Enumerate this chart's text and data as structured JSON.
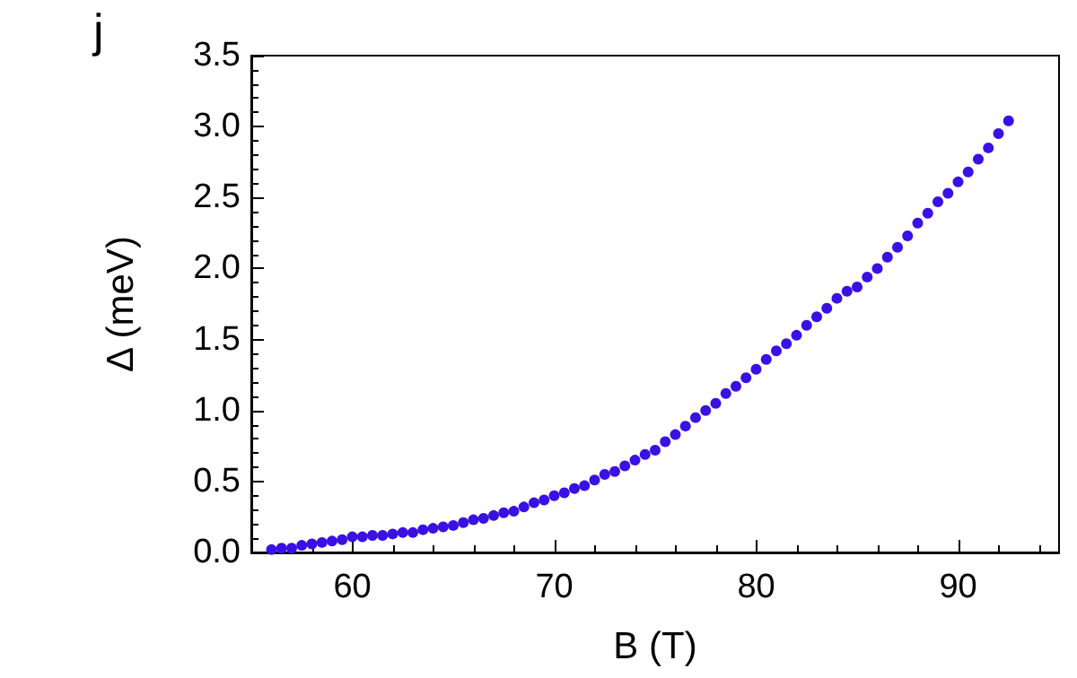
{
  "chart_data": {
    "type": "scatter",
    "xlabel": "B (T)",
    "ylabel": "Δ (meV)",
    "annotations": [
      "j"
    ],
    "xlim": [
      55,
      95
    ],
    "xticks": [
      60,
      70,
      80,
      90
    ],
    "ylim": [
      0,
      3.5
    ],
    "yticks": [
      {
        "value": 0,
        "label": "0.0"
      },
      0.5,
      {
        "value": 1,
        "label": "1.0"
      },
      1.5,
      {
        "value": 2,
        "label": "2.0"
      },
      2.5,
      {
        "value": 3,
        "label": "3.0"
      },
      3.5
    ],
    "grid": false,
    "marker": "circle",
    "x": [
      56,
      56.5,
      57,
      57.5,
      58,
      58.5,
      59,
      59.5,
      60,
      60.5,
      61,
      61.5,
      62,
      62.5,
      63,
      63.5,
      64,
      64.5,
      65,
      65.5,
      66,
      66.5,
      67,
      67.5,
      68,
      68.5,
      69,
      69.5,
      70,
      70.5,
      71,
      71.5,
      72,
      72.5,
      73,
      73.5,
      74,
      74.5,
      75,
      75.5,
      76,
      76.5,
      77,
      77.5,
      78,
      78.5,
      79,
      79.5,
      80,
      80.5,
      81,
      81.5,
      82,
      82.5,
      83,
      83.5,
      84,
      84.5,
      85,
      85.5,
      86,
      86.5,
      87,
      87.5,
      88,
      88.5,
      89,
      89.5,
      90,
      90.5,
      91,
      91.5,
      92,
      92.5
    ],
    "series": [
      {
        "color": "#3a10e5",
        "values": [
          0.02,
          0.03,
          0.03,
          0.05,
          0.06,
          0.07,
          0.08,
          0.09,
          0.11,
          0.11,
          0.12,
          0.12,
          0.13,
          0.14,
          0.14,
          0.16,
          0.17,
          0.18,
          0.19,
          0.21,
          0.23,
          0.24,
          0.26,
          0.28,
          0.29,
          0.32,
          0.35,
          0.37,
          0.4,
          0.42,
          0.45,
          0.47,
          0.51,
          0.55,
          0.57,
          0.61,
          0.65,
          0.69,
          0.72,
          0.78,
          0.83,
          0.89,
          0.95,
          1.0,
          1.05,
          1.12,
          1.17,
          1.23,
          1.29,
          1.36,
          1.42,
          1.47,
          1.53,
          1.6,
          1.66,
          1.72,
          1.79,
          1.84,
          1.87,
          1.94,
          2.0,
          2.08,
          2.15,
          2.23,
          2.32,
          2.39,
          2.47,
          2.53,
          2.61,
          2.68,
          2.77,
          2.85,
          2.95,
          3.04
        ]
      }
    ]
  }
}
